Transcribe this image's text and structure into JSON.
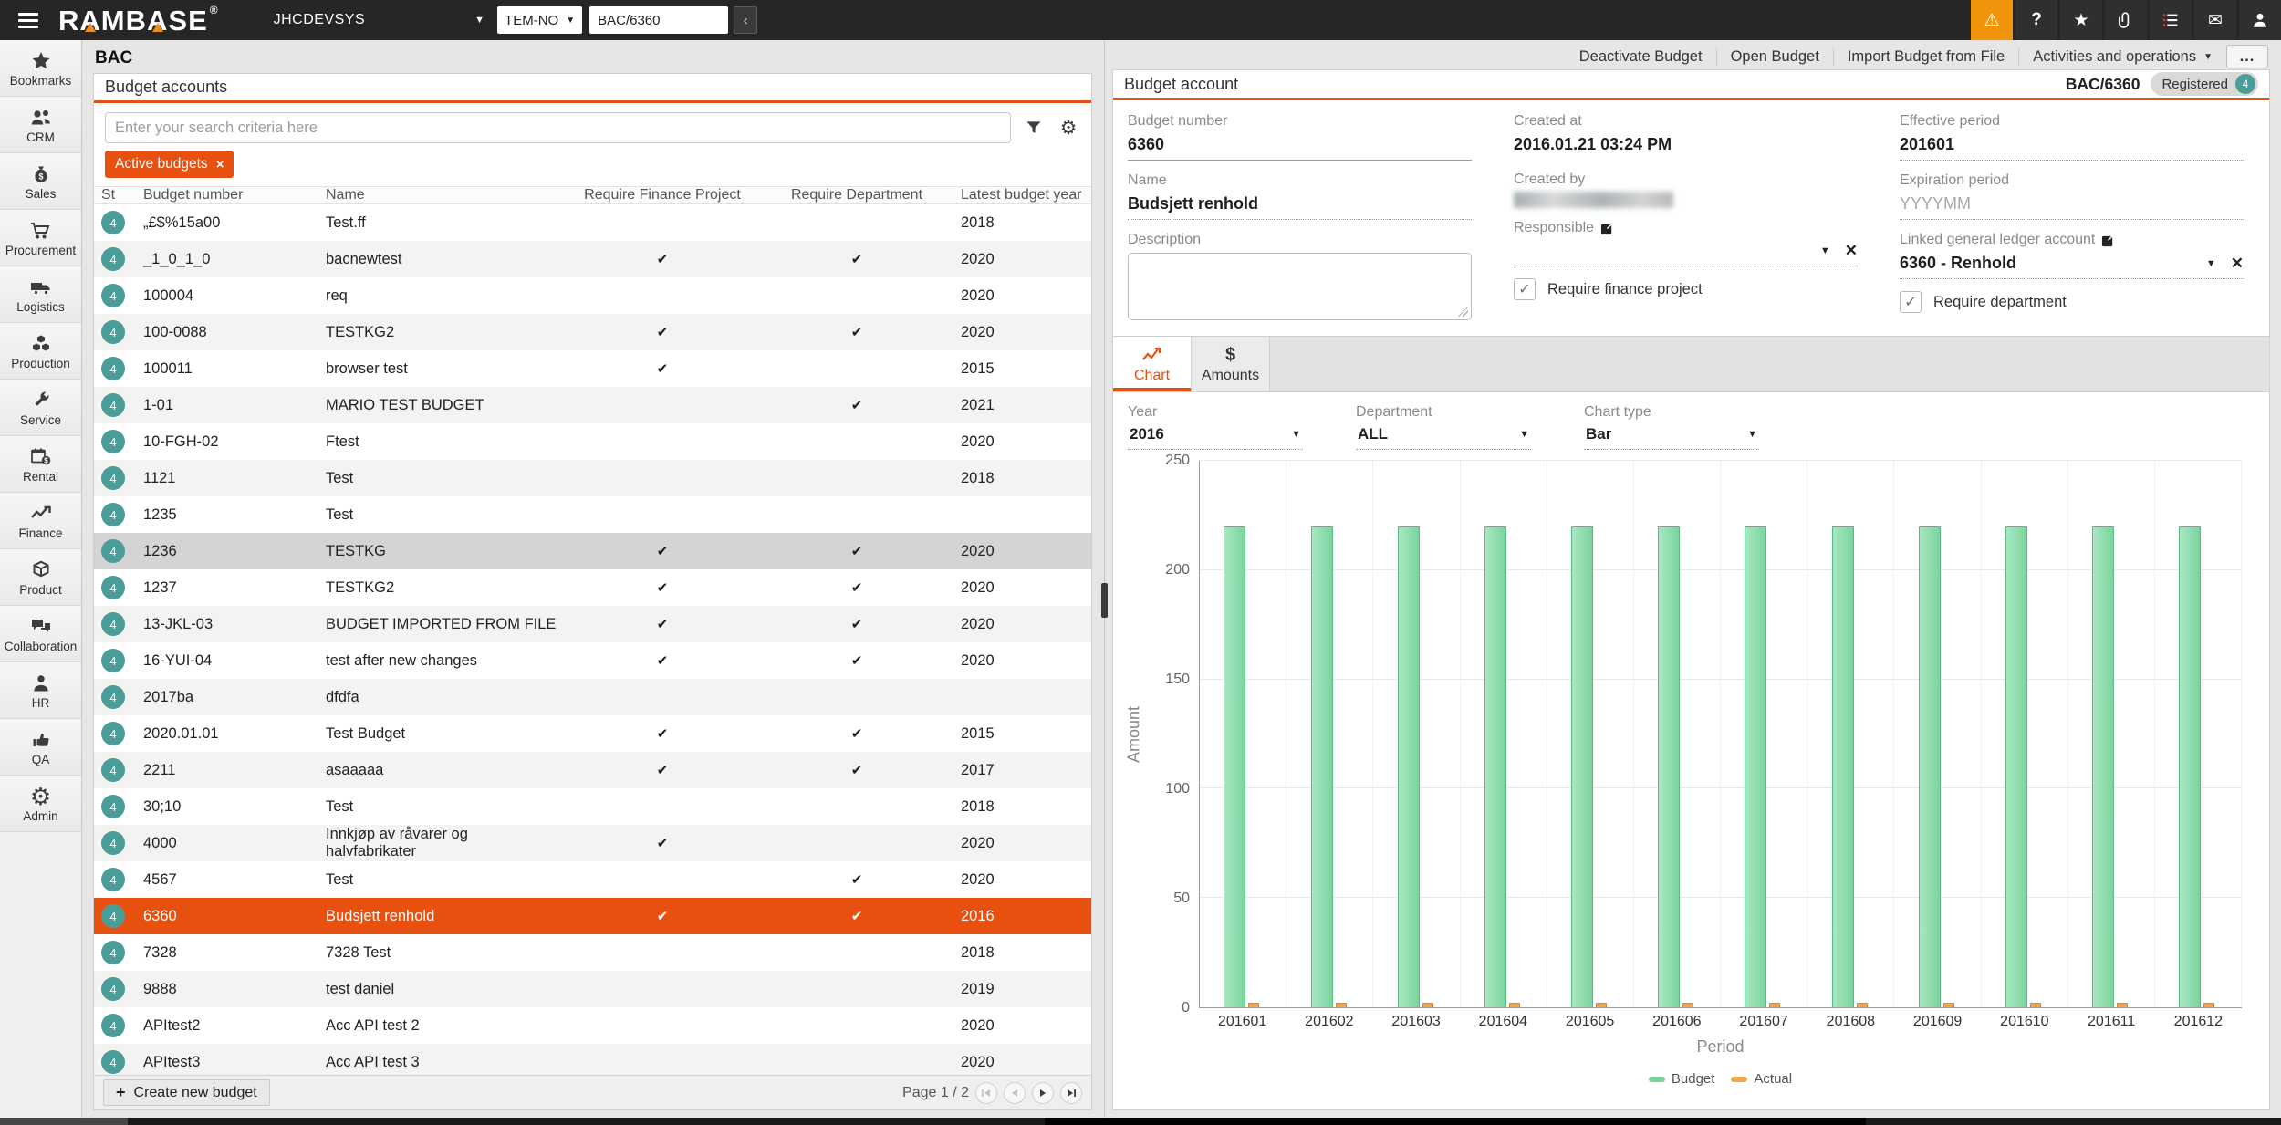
{
  "topbar": {
    "logo": "RAMBASE",
    "system": "JHCDEVSYS",
    "module_select": "TEM-NO",
    "search_value": "BAC/6360",
    "go_label": "‹",
    "icons": [
      "alert-icon",
      "help-icon",
      "star-icon",
      "paperclip-icon",
      "list-icon",
      "mail-icon",
      "user-icon"
    ]
  },
  "sidebar": {
    "items": [
      {
        "label": "Bookmarks",
        "icon": "star-icon"
      },
      {
        "label": "CRM",
        "icon": "people-icon"
      },
      {
        "label": "Sales",
        "icon": "moneybag-icon"
      },
      {
        "label": "Procurement",
        "icon": "cart-icon"
      },
      {
        "label": "Logistics",
        "icon": "truck-icon"
      },
      {
        "label": "Production",
        "icon": "cubes-icon"
      },
      {
        "label": "Service",
        "icon": "wrench-icon"
      },
      {
        "label": "Rental",
        "icon": "calendar-dollar-icon"
      },
      {
        "label": "Finance",
        "icon": "chart-line-icon"
      },
      {
        "label": "Product",
        "icon": "box-icon"
      },
      {
        "label": "Collaboration",
        "icon": "chat-icon"
      },
      {
        "label": "HR",
        "icon": "person-icon"
      },
      {
        "label": "QA",
        "icon": "thumbs-up-icon"
      },
      {
        "label": "Admin",
        "icon": "gear-icon"
      }
    ]
  },
  "left_panel": {
    "page_tab": "BAC",
    "panel_title": "Budget accounts",
    "search_placeholder": "Enter your search criteria here",
    "filter_chip": "Active budgets",
    "table": {
      "columns": [
        "St",
        "Budget number",
        "Name",
        "Require Finance Project",
        "Require Department",
        "Latest budget year"
      ],
      "status_value": "4",
      "rows": [
        {
          "number": "„£$%15a00",
          "name": "Test.ff",
          "finance": false,
          "department": false,
          "year": "2018"
        },
        {
          "number": "_1_0_1_0",
          "name": "bacnewtest",
          "finance": true,
          "department": true,
          "year": "2020"
        },
        {
          "number": "100004",
          "name": "req",
          "finance": false,
          "department": false,
          "year": "2020"
        },
        {
          "number": "100-0088",
          "name": "TESTKG2",
          "finance": true,
          "department": true,
          "year": "2020"
        },
        {
          "number": "100011",
          "name": "browser test",
          "finance": true,
          "department": false,
          "year": "2015"
        },
        {
          "number": "1-01",
          "name": "MARIO TEST BUDGET",
          "finance": false,
          "department": true,
          "year": "2021"
        },
        {
          "number": "10-FGH-02",
          "name": "Ftest",
          "finance": false,
          "department": false,
          "year": "2020"
        },
        {
          "number": "1121",
          "name": "Test",
          "finance": false,
          "department": false,
          "year": "2018"
        },
        {
          "number": "1235",
          "name": "Test",
          "finance": false,
          "department": false,
          "year": ""
        },
        {
          "number": "1236",
          "name": "TESTKG",
          "finance": true,
          "department": true,
          "year": "2020",
          "shaded": true
        },
        {
          "number": "1237",
          "name": "TESTKG2",
          "finance": true,
          "department": true,
          "year": "2020"
        },
        {
          "number": "13-JKL-03",
          "name": "BUDGET IMPORTED FROM FILE",
          "finance": true,
          "department": true,
          "year": "2020"
        },
        {
          "number": "16-YUI-04",
          "name": "test after new changes",
          "finance": true,
          "department": true,
          "year": "2020"
        },
        {
          "number": "2017ba",
          "name": "dfdfa",
          "finance": false,
          "department": false,
          "year": ""
        },
        {
          "number": "2020.01.01",
          "name": "Test Budget",
          "finance": true,
          "department": true,
          "year": "2015"
        },
        {
          "number": "2211",
          "name": "asaaaaa",
          "finance": true,
          "department": true,
          "year": "2017"
        },
        {
          "number": "30;10",
          "name": "Test",
          "finance": false,
          "department": false,
          "year": "2018"
        },
        {
          "number": "4000",
          "name": "Innkjøp av råvarer og halvfabrikater",
          "finance": true,
          "department": false,
          "year": "2020"
        },
        {
          "number": "4567",
          "name": "Test",
          "finance": false,
          "department": true,
          "year": "2020"
        },
        {
          "number": "6360",
          "name": "Budsjett renhold",
          "finance": true,
          "department": true,
          "year": "2016",
          "selected": true
        },
        {
          "number": "7328",
          "name": "7328 Test",
          "finance": false,
          "department": false,
          "year": "2018"
        },
        {
          "number": "9888",
          "name": "test daniel",
          "finance": false,
          "department": false,
          "year": "2019"
        },
        {
          "number": "APItest2",
          "name": "Acc API test 2",
          "finance": false,
          "department": false,
          "year": "2020"
        },
        {
          "number": "APItest3",
          "name": "Acc API test 3",
          "finance": false,
          "department": false,
          "year": "2020"
        }
      ]
    },
    "footer": {
      "create_label": "Create new budget",
      "page_label": "Page 1 / 2"
    }
  },
  "right_panel": {
    "actions": [
      "Deactivate Budget",
      "Open Budget",
      "Import Budget from File",
      "Activities and operations"
    ],
    "more_label": "...",
    "panel_title": "Budget account",
    "doc_id": "BAC/6360",
    "status_label": "Registered",
    "status_value": "4",
    "form": {
      "budget_number": {
        "label": "Budget number",
        "value": "6360"
      },
      "name": {
        "label": "Name",
        "value": "Budsjett renhold"
      },
      "description": {
        "label": "Description",
        "value": ""
      },
      "created_at": {
        "label": "Created at",
        "value": "2016.01.21 03:24 PM"
      },
      "created_by": {
        "label": "Created by",
        "redacted": true
      },
      "responsible": {
        "label": "Responsible",
        "redacted": true
      },
      "require_finance_project": {
        "label": "Require finance project",
        "checked": true
      },
      "effective_period": {
        "label": "Effective period",
        "value": "201601"
      },
      "expiration_period": {
        "label": "Expiration period",
        "placeholder": "YYYYMM"
      },
      "linked_gl_account": {
        "label": "Linked general ledger account",
        "value": "6360 - Renhold"
      },
      "require_department": {
        "label": "Require department",
        "checked": true
      }
    },
    "tabs": [
      {
        "label": "Chart",
        "active": true
      },
      {
        "label": "Amounts",
        "active": false
      }
    ],
    "filters": {
      "year_label": "Year",
      "year": "2016",
      "department_label": "Department",
      "department": "ALL",
      "charttype_label": "Chart type",
      "charttype": "Bar"
    }
  },
  "chart_data": {
    "type": "bar",
    "categories": [
      "201601",
      "201602",
      "201603",
      "201604",
      "201605",
      "201606",
      "201607",
      "201608",
      "201609",
      "201610",
      "201611",
      "201612"
    ],
    "series": [
      {
        "name": "Budget",
        "values": [
          220,
          220,
          220,
          220,
          220,
          220,
          220,
          220,
          220,
          220,
          220,
          220
        ],
        "color": "#7bd49e"
      },
      {
        "name": "Actual",
        "values": [
          2,
          2,
          2,
          2,
          2,
          2,
          2,
          2,
          2,
          2,
          2,
          2
        ],
        "color": "#f2a64b"
      }
    ],
    "title": "",
    "xlabel": "Period",
    "ylabel": "Amount",
    "ylim": [
      0,
      250
    ],
    "yticks": [
      0,
      50,
      100,
      150,
      200,
      250
    ],
    "grid": true,
    "legend_position": "bottom"
  }
}
